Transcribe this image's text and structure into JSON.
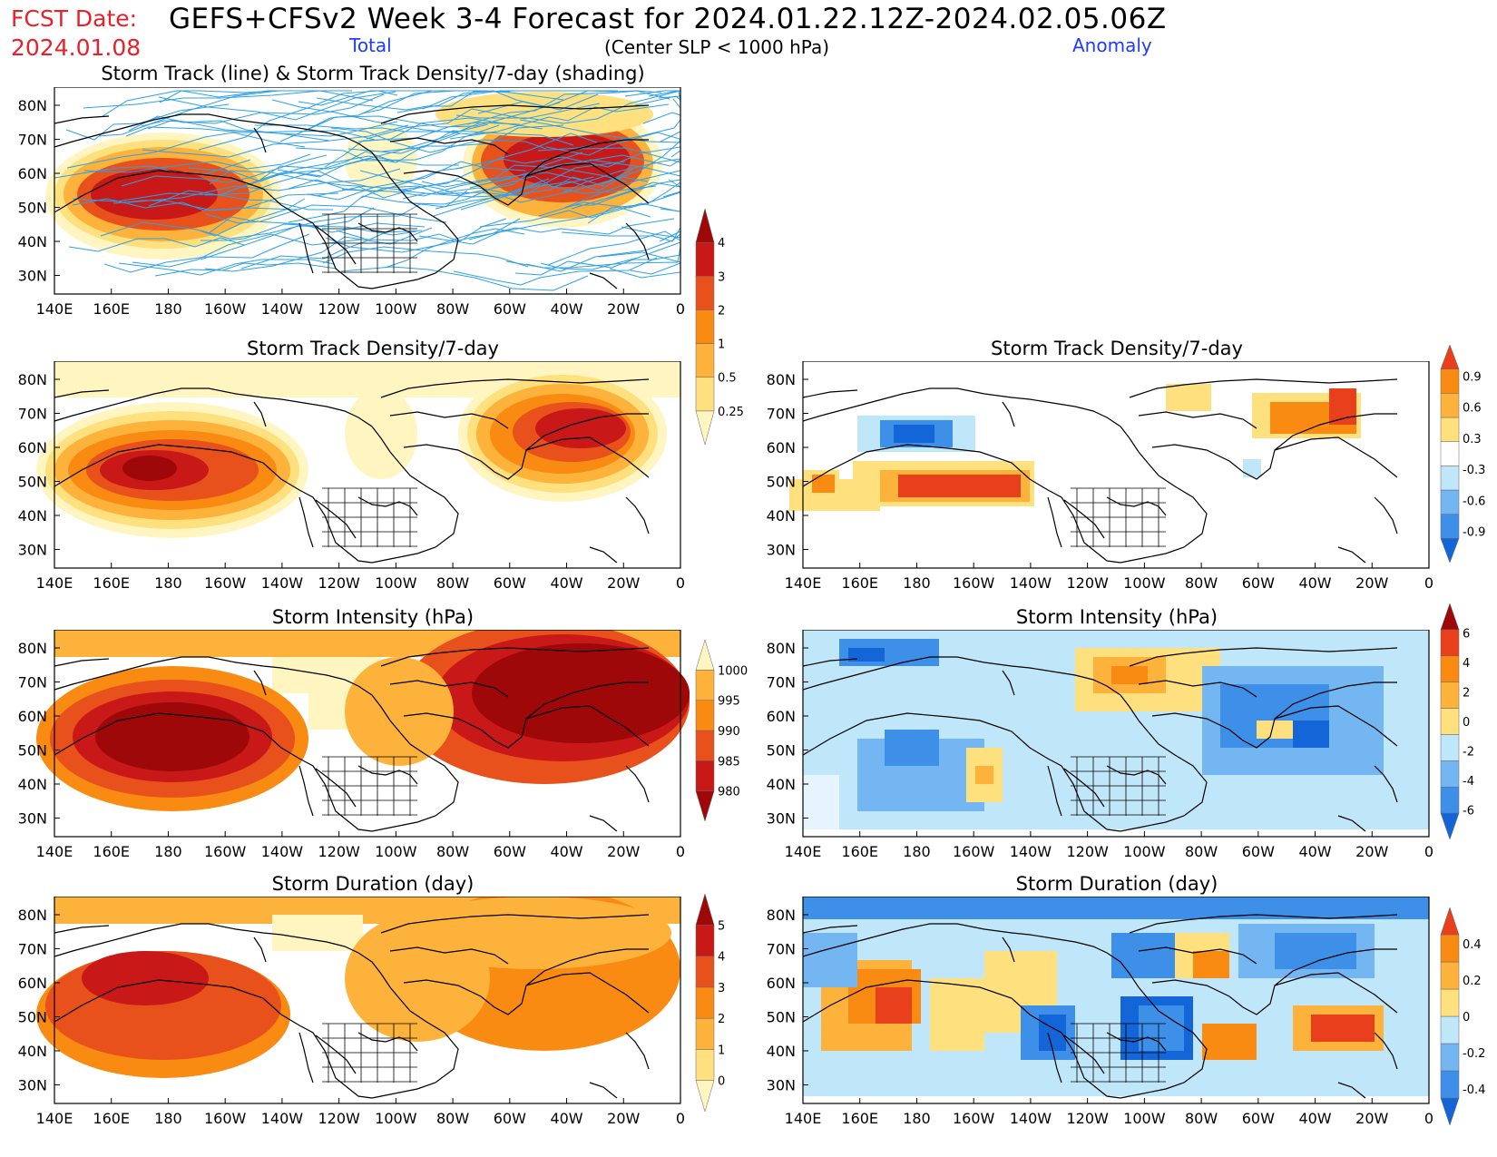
{
  "header": {
    "fcst_label": "FCST Date:",
    "fcst_date": "2024.01.08",
    "title": "GEFS+CFSv2 Week 3-4 Forecast for 2024.01.22.12Z-2024.02.05.06Z",
    "total_label": "Total",
    "anomaly_label": "Anomaly",
    "subtitle": "(Center SLP < 1000 hPa)"
  },
  "map_axes": {
    "lon_ticks": [
      "140E",
      "160E",
      "180",
      "160W",
      "140W",
      "120W",
      "100W",
      "80W",
      "60W",
      "40W",
      "20W",
      "0"
    ],
    "lat_ticks": [
      "80N",
      "70N",
      "60N",
      "50N",
      "40N",
      "30N"
    ]
  },
  "panels": {
    "track": {
      "title": "Storm Track (line) & Storm Track Density/7-day (shading)"
    },
    "density_total": {
      "title": "Storm Track Density/7-day"
    },
    "density_anom": {
      "title": "Storm Track Density/7-day"
    },
    "intensity_total": {
      "title": "Storm Intensity (hPa)"
    },
    "intensity_anom": {
      "title": "Storm Intensity (hPa)"
    },
    "duration_total": {
      "title": "Storm Duration (day)"
    },
    "duration_anom": {
      "title": "Storm Duration (day)"
    }
  },
  "colorbars": {
    "density_total": {
      "labels": [
        "0.25",
        "0.5",
        "1",
        "2",
        "3",
        "4"
      ],
      "colors": [
        "#fff5c0",
        "#fee17e",
        "#fdb23c",
        "#f98a12",
        "#e8501c",
        "#c81818",
        "#9e0808"
      ]
    },
    "density_anom": {
      "labels": [
        "-0.9",
        "-0.6",
        "-0.3",
        "0.3",
        "0.6",
        "0.9"
      ],
      "colors": [
        "#1466d8",
        "#3d8fe8",
        "#74b6f2",
        "#c0e6fa",
        "#ffffff",
        "#fee17e",
        "#fdb23c",
        "#f98a12",
        "#e8401c"
      ]
    },
    "intensity_total": {
      "labels": [
        "980",
        "985",
        "990",
        "995",
        "1000"
      ],
      "colors": [
        "#9e0808",
        "#c81818",
        "#e8501c",
        "#f98a12",
        "#fdb23c",
        "#fff5c0"
      ]
    },
    "intensity_anom": {
      "labels": [
        "-6",
        "-4",
        "-2",
        "0",
        "2",
        "4",
        "6"
      ],
      "colors": [
        "#1466d8",
        "#3d8fe8",
        "#74b6f2",
        "#c0e6fa",
        "#fee17e",
        "#fdb23c",
        "#f98a12",
        "#e8401c",
        "#9e0808"
      ]
    },
    "duration_total": {
      "labels": [
        "0",
        "1",
        "2",
        "3",
        "4",
        "5"
      ],
      "colors": [
        "#fff5c0",
        "#fee17e",
        "#fdb23c",
        "#f98a12",
        "#e8501c",
        "#c81818",
        "#9e0808"
      ]
    },
    "duration_anom": {
      "labels": [
        "-0.4",
        "-0.2",
        "0",
        "0.2",
        "0.4"
      ],
      "colors": [
        "#1466d8",
        "#3d8fe8",
        "#74b6f2",
        "#c0e6fa",
        "#fee17e",
        "#fdb23c",
        "#f98a12",
        "#e8401c"
      ]
    }
  },
  "colors": {
    "track_line": "#2ea0e8",
    "map_outline": "#000000"
  }
}
